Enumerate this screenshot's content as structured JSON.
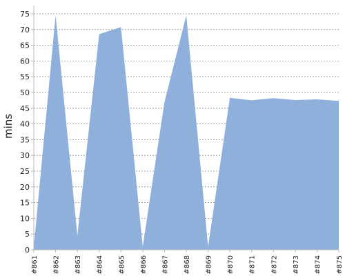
{
  "chart_data": {
    "type": "area",
    "title": "",
    "xlabel": "",
    "ylabel": "mins",
    "ylim": [
      0,
      75
    ],
    "yticks": [
      0,
      5,
      10,
      15,
      20,
      25,
      30,
      35,
      40,
      45,
      50,
      55,
      60,
      65,
      70,
      75
    ],
    "grid": true,
    "categories": [
      "#861",
      "#862",
      "#863",
      "#864",
      "#865",
      "#866",
      "#867",
      "#868",
      "#869",
      "#870",
      "#871",
      "#872",
      "#873",
      "#874",
      "#875"
    ],
    "series": [
      {
        "values": [
          1,
          74.5,
          4.5,
          68.5,
          70.8,
          1,
          47,
          74.5,
          1,
          48.3,
          47.5,
          48.2,
          47.6,
          47.8,
          47.3
        ]
      }
    ],
    "colors": {
      "fill": "#8fb0da",
      "grid": "#888888",
      "axis": "#b8b8b8",
      "text": "#222222"
    }
  }
}
